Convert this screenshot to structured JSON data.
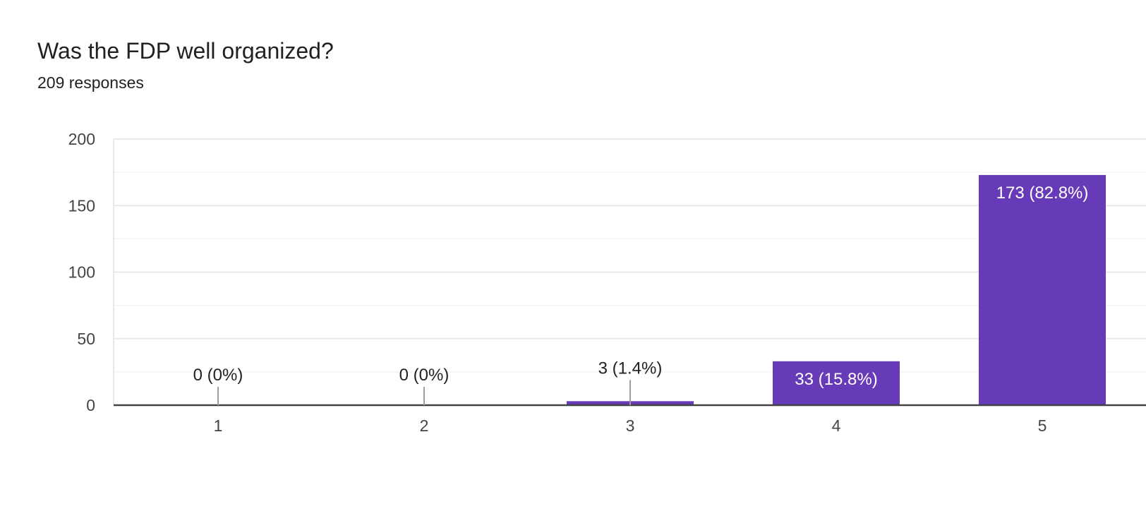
{
  "header": {
    "title": "Was the FDP well organized?",
    "responses": "209 responses"
  },
  "colors": {
    "bar": "#673ab7",
    "grid_major": "#e8e8e8",
    "grid_minor": "#f4f4f4",
    "axis": "#444444",
    "label_outside": "#222222",
    "label_inside": "#ffffff",
    "leader": "#9e9e9e"
  },
  "chart_data": {
    "type": "bar",
    "title": "Was the FDP well organized?",
    "subtitle": "209 responses",
    "categories": [
      "1",
      "2",
      "3",
      "4",
      "5"
    ],
    "values": [
      0,
      0,
      3,
      33,
      173
    ],
    "data_labels": [
      "0 (0%)",
      "0 (0%)",
      "3 (1.4%)",
      "33 (15.8%)",
      "173 (82.8%)"
    ],
    "xlabel": "",
    "ylabel": "",
    "ylim": [
      0,
      200
    ],
    "yticks": [
      "0",
      "50",
      "100",
      "150",
      "200"
    ],
    "grid": true,
    "legend": "none"
  }
}
